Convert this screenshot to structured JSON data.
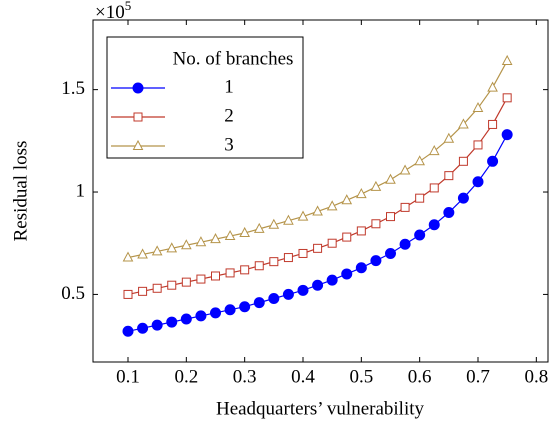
{
  "chart_data": {
    "type": "line",
    "x_label": "Headquarters’ vulnerability",
    "y_label": "Residual loss",
    "y_multiplier": {
      "base": "×10",
      "exponent": "5"
    },
    "legend_title": "No. of branches",
    "legend_position": "upper left",
    "x": [
      0.1,
      0.125,
      0.15,
      0.175,
      0.2,
      0.225,
      0.25,
      0.275,
      0.3,
      0.325,
      0.35,
      0.375,
      0.4,
      0.425,
      0.45,
      0.475,
      0.5,
      0.525,
      0.55,
      0.575,
      0.6,
      0.625,
      0.65,
      0.675,
      0.7,
      0.725,
      0.75
    ],
    "series": [
      {
        "name": "1",
        "color": "#0000ff",
        "marker": "circle",
        "values": [
          0.32,
          0.335,
          0.35,
          0.365,
          0.38,
          0.395,
          0.41,
          0.425,
          0.44,
          0.46,
          0.48,
          0.5,
          0.52,
          0.545,
          0.57,
          0.6,
          0.63,
          0.665,
          0.7,
          0.745,
          0.79,
          0.84,
          0.9,
          0.97,
          1.05,
          1.15,
          1.28
        ]
      },
      {
        "name": "2",
        "color": "#c0392b",
        "marker": "square",
        "values": [
          0.5,
          0.515,
          0.53,
          0.545,
          0.56,
          0.575,
          0.59,
          0.605,
          0.62,
          0.64,
          0.66,
          0.68,
          0.7,
          0.725,
          0.75,
          0.78,
          0.81,
          0.845,
          0.88,
          0.925,
          0.97,
          1.02,
          1.08,
          1.15,
          1.23,
          1.33,
          1.46
        ]
      },
      {
        "name": "3",
        "color": "#b5944a",
        "marker": "triangle",
        "values": [
          0.68,
          0.695,
          0.71,
          0.725,
          0.74,
          0.755,
          0.77,
          0.785,
          0.8,
          0.82,
          0.84,
          0.86,
          0.88,
          0.905,
          0.93,
          0.96,
          0.99,
          1.025,
          1.06,
          1.105,
          1.15,
          1.2,
          1.26,
          1.33,
          1.41,
          1.51,
          1.64
        ]
      }
    ],
    "xlim": [
      0.04,
      0.82
    ],
    "xticks": [
      0.1,
      0.2,
      0.3,
      0.4,
      0.5,
      0.6,
      0.7,
      0.8
    ],
    "ylim": [
      0.17,
      1.84
    ],
    "yticks": [
      0.5,
      1,
      1.5
    ],
    "grid": false
  }
}
